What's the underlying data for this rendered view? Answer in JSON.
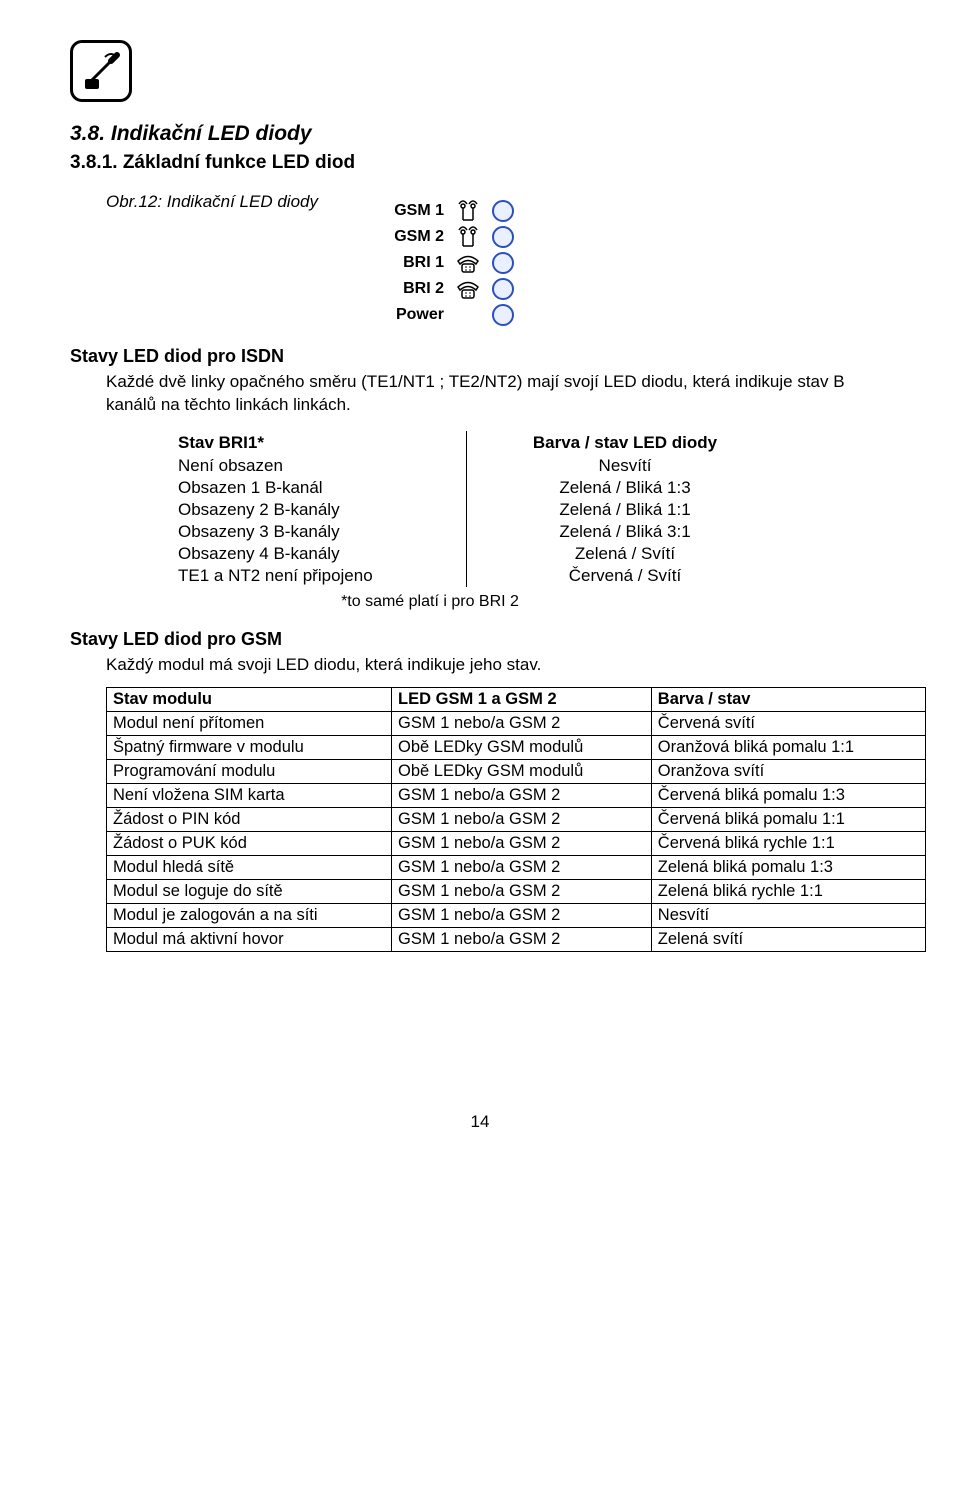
{
  "section_heading": "3.8. Indikační LED diody",
  "sub_heading": "3.8.1. Základní funkce LED diod",
  "figure_caption": "Obr.12: Indikační LED diody",
  "led_panel": {
    "rows": [
      {
        "label": "GSM 1",
        "icon": "antenna"
      },
      {
        "label": "GSM 2",
        "icon": "antenna"
      },
      {
        "label": "BRI 1",
        "icon": "phone"
      },
      {
        "label": "BRI 2",
        "icon": "phone"
      },
      {
        "label": "Power",
        "icon": "none"
      }
    ]
  },
  "isdn": {
    "heading": "Stavy LED diod pro ISDN",
    "paragraph": "Každé dvě linky opačného směru (TE1/NT1 ; TE2/NT2) mají svojí LED diodu, která indikuje stav B kanálů na těchto linkách linkách.",
    "table": {
      "head_a": "Stav BRI1*",
      "head_b": "Barva / stav LED diody",
      "rows": [
        [
          "Není obsazen",
          "Nesvítí"
        ],
        [
          "Obsazen 1 B-kanál",
          "Zelená / Bliká 1:3"
        ],
        [
          "Obsazeny 2 B-kanály",
          "Zelená / Bliká 1:1"
        ],
        [
          "Obsazeny 3 B-kanály",
          "Zelená / Bliká 3:1"
        ],
        [
          "Obsazeny 4 B-kanály",
          "Zelená / Svítí"
        ],
        [
          "TE1 a NT2 není připojeno",
          "Červená / Svítí"
        ]
      ],
      "footnote": "*to samé platí i pro BRI 2"
    }
  },
  "gsm": {
    "heading": "Stavy LED diod pro GSM",
    "paragraph": "Každý modul má svoji LED diodu, která indikuje jeho stav.",
    "table": {
      "head": [
        "Stav modulu",
        "LED GSM 1 a  GSM 2",
        "Barva / stav"
      ],
      "rows": [
        [
          "Modul není přítomen",
          "GSM 1 nebo/a GSM 2",
          "Červená svítí"
        ],
        [
          "Špatný firmware v modulu",
          "Obě LEDky GSM modulů",
          "Oranžová bliká pomalu 1:1"
        ],
        [
          "Programování modulu",
          "Obě LEDky GSM modulů",
          "Oranžova svítí"
        ],
        [
          "Není vložena SIM karta",
          "GSM 1 nebo/a GSM 2",
          "Červená bliká pomalu 1:3"
        ],
        [
          "Žádost o PIN kód",
          "GSM 1 nebo/a GSM 2",
          "Červená bliká pomalu 1:1"
        ],
        [
          "Žádost o PUK kód",
          "GSM 1 nebo/a GSM 2",
          "Červená bliká rychle 1:1"
        ],
        [
          "Modul hledá sítě",
          "GSM 1 nebo/a GSM 2",
          "Zelená bliká pomalu 1:3"
        ],
        [
          "Modul se loguje do sítě",
          "GSM 1 nebo/a GSM 2",
          "Zelená bliká rychle 1:1"
        ],
        [
          "Modul je zalogován a na síti",
          "GSM 1 nebo/a GSM 2",
          "Nesvítí"
        ],
        [
          "Modul má aktivní hovor",
          "GSM 1 nebo/a GSM 2",
          "Zelená svítí"
        ]
      ]
    }
  },
  "page_number": "14"
}
